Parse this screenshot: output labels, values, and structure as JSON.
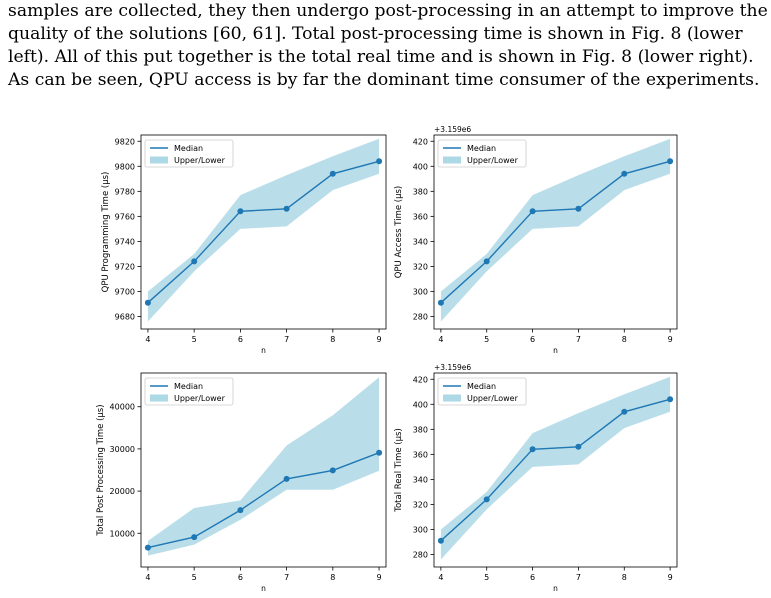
{
  "paragraph": {
    "lines": [
      "samples are collected, they then undergo post-processing in an attempt to improve the",
      "quality of the solutions [60, 61]. Total post-processing time is shown in Fig. 8 (lower",
      "left). All of this put together is the total real time and is shown in Fig. 8 (lower right).",
      "As can be seen, QPU access is by far the dominant time consumer of the experiments."
    ]
  },
  "colors": {
    "line": "#1f77b4",
    "band": "#add8e6"
  },
  "chart_data": [
    {
      "type": "line",
      "x": [
        4,
        5,
        6,
        7,
        8,
        9
      ],
      "xlabel": "n",
      "ylabel": "QPU Programming Time  (μs)",
      "offset_text": "",
      "ylim": [
        9670,
        9825
      ],
      "yticks": [
        9680,
        9700,
        9720,
        9740,
        9760,
        9780,
        9800,
        9820
      ],
      "series": [
        {
          "name": "Median",
          "values": [
            9691,
            9724,
            9764,
            9766,
            9794,
            9804
          ]
        },
        {
          "name": "Upper/Lower",
          "upper": [
            9700,
            9730,
            9777,
            9793,
            9808,
            9822
          ],
          "lower": [
            9676,
            9716,
            9750,
            9752,
            9781,
            9794
          ]
        }
      ],
      "legend": "upper-left"
    },
    {
      "type": "line",
      "x": [
        4,
        5,
        6,
        7,
        8,
        9
      ],
      "xlabel": "n",
      "ylabel": "QPU Access Time  (μs)",
      "offset_text": "+3.159e6",
      "ylim": [
        270,
        425
      ],
      "yticks": [
        280,
        300,
        320,
        340,
        360,
        380,
        400,
        420
      ],
      "series": [
        {
          "name": "Median",
          "values": [
            291,
            324,
            364,
            366,
            394,
            404
          ]
        },
        {
          "name": "Upper/Lower",
          "upper": [
            300,
            330,
            377,
            393,
            408,
            422
          ],
          "lower": [
            276,
            316,
            350,
            352,
            381,
            394
          ]
        }
      ],
      "legend": "upper-left"
    },
    {
      "type": "line",
      "x": [
        4,
        5,
        6,
        7,
        8,
        9
      ],
      "xlabel": "n",
      "ylabel": "Total Post Processing Time  (μs)",
      "offset_text": "",
      "ylim": [
        2000,
        48000
      ],
      "yticks": [
        10000,
        20000,
        30000,
        40000
      ],
      "series": [
        {
          "name": "Median",
          "values": [
            6600,
            9100,
            15500,
            22900,
            24900,
            29100
          ]
        },
        {
          "name": "Upper/Lower",
          "upper": [
            8200,
            16000,
            17800,
            30800,
            38000,
            47000
          ],
          "lower": [
            4700,
            7300,
            13200,
            20300,
            20300,
            24800
          ]
        }
      ],
      "legend": "upper-left"
    },
    {
      "type": "line",
      "x": [
        4,
        5,
        6,
        7,
        8,
        9
      ],
      "xlabel": "n",
      "ylabel": "Total Real Time  (μs)",
      "offset_text": "+3.159e6",
      "ylim": [
        270,
        425
      ],
      "yticks": [
        280,
        300,
        320,
        340,
        360,
        380,
        400,
        420
      ],
      "series": [
        {
          "name": "Median",
          "values": [
            291,
            324,
            364,
            366,
            394,
            404
          ]
        },
        {
          "name": "Upper/Lower",
          "upper": [
            300,
            330,
            377,
            393,
            408,
            422
          ],
          "lower": [
            276,
            316,
            350,
            352,
            381,
            394
          ]
        }
      ],
      "legend": "upper-left"
    }
  ]
}
